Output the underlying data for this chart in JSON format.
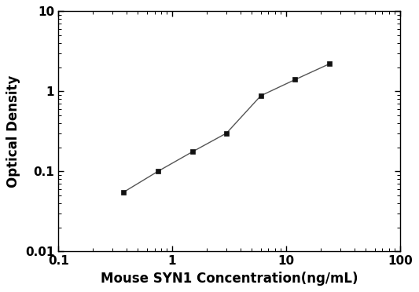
{
  "x": [
    0.375,
    0.75,
    1.5,
    3.0,
    6.0,
    12.0,
    24.0
  ],
  "y": [
    0.055,
    0.1,
    0.175,
    0.3,
    0.88,
    1.4,
    2.2
  ],
  "xlim": [
    0.1,
    100
  ],
  "ylim": [
    0.01,
    10
  ],
  "xlabel": "Mouse SYN1 Concentration(ng/mL)",
  "ylabel": "Optical Density",
  "line_color": "#555555",
  "marker": "s",
  "marker_color": "#111111",
  "marker_size": 5,
  "linewidth": 1.0,
  "background_color": "#ffffff",
  "xticks": [
    0.1,
    1,
    10,
    100
  ],
  "yticks": [
    0.01,
    0.1,
    1,
    10
  ],
  "xtick_labels": [
    "0.1",
    "1",
    "10",
    "100"
  ],
  "ytick_labels": [
    "0.01",
    "0.1",
    "1",
    "10"
  ],
  "font_weight": "bold",
  "label_fontsize": 12,
  "tick_fontsize": 11
}
